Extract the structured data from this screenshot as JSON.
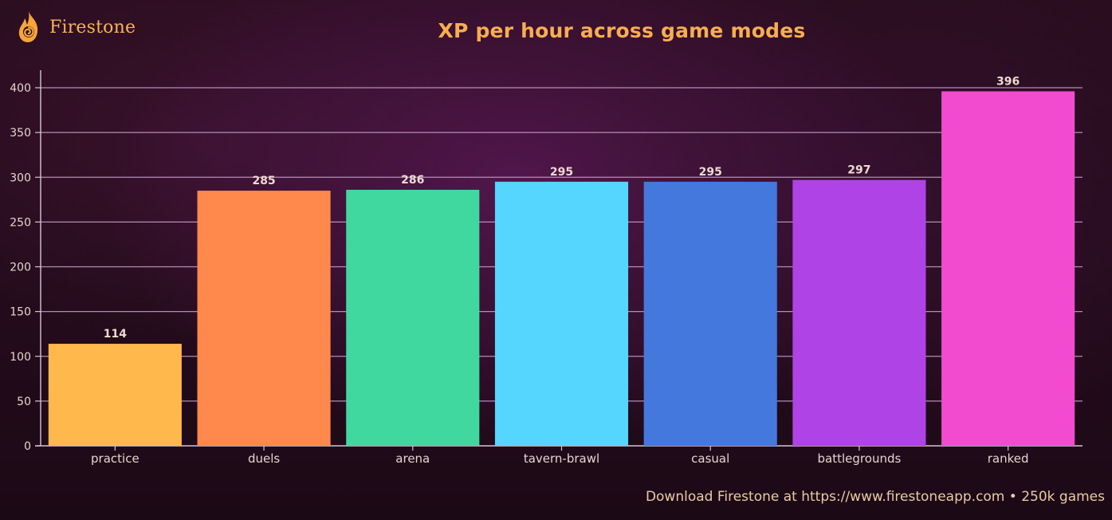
{
  "brand": {
    "name": "Firestone",
    "logo_icon": "flame-icon"
  },
  "colors": {
    "title": "#f8ad50",
    "gridline": "#c9a3cf",
    "axis": "#d8c4d4",
    "tick_text": "#e6d4cf",
    "value_label": "#eedad0"
  },
  "footer": {
    "text": "Download Firestone at https://www.firestoneapp.com • 250k games"
  },
  "chart_data": {
    "type": "bar",
    "title": "XP per hour across game modes",
    "xlabel": "",
    "ylabel": "",
    "categories": [
      "practice",
      "duels",
      "arena",
      "tavern-brawl",
      "casual",
      "battlegrounds",
      "ranked"
    ],
    "values": [
      114,
      285,
      286,
      295,
      295,
      297,
      396
    ],
    "value_labels": [
      "114",
      "285",
      "286",
      "295",
      "295",
      "297",
      "396"
    ],
    "bar_colors": [
      "#ffb84c",
      "#ff884c",
      "#41d8a0",
      "#55d6ff",
      "#4578dd",
      "#b043e5",
      "#f24bd0"
    ],
    "ylim": [
      0,
      420
    ],
    "yticks": [
      0,
      50,
      100,
      150,
      200,
      250,
      300,
      350,
      400
    ],
    "ytick_labels": [
      "0",
      "50",
      "100",
      "150",
      "200",
      "250",
      "300",
      "350",
      "400"
    ],
    "grid": true,
    "legend": "none"
  }
}
